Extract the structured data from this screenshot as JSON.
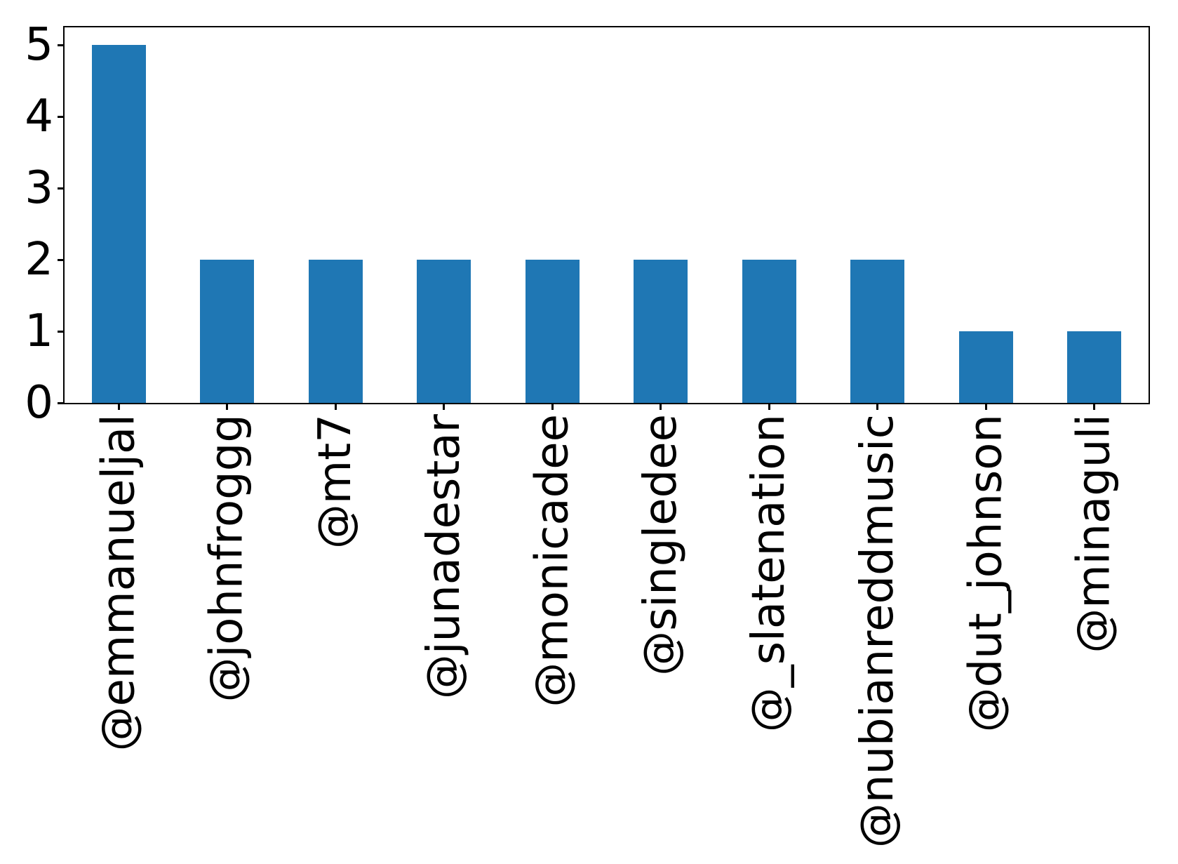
{
  "chart_data": {
    "type": "bar",
    "title": "",
    "xlabel": "",
    "ylabel": "",
    "categories": [
      "@emmanueljal",
      "@johnfroggg",
      "@mt7",
      "@junadestar",
      "@monicadee",
      "@singledee",
      "@_slatenation",
      "@nubianreddmusic",
      "@dut_johnson",
      "@minaguli"
    ],
    "values": [
      5,
      2,
      2,
      2,
      2,
      2,
      2,
      2,
      1,
      1
    ],
    "yticks": [
      0,
      1,
      2,
      3,
      4,
      5
    ],
    "ylim": [
      0,
      5.25
    ],
    "x_tick_rotation": 90,
    "bar_width_fraction": 0.5,
    "grid": false,
    "legend_position": "none",
    "bar_color": "#1f77b4",
    "axis_color": "#000000",
    "background_color": "#ffffff"
  }
}
